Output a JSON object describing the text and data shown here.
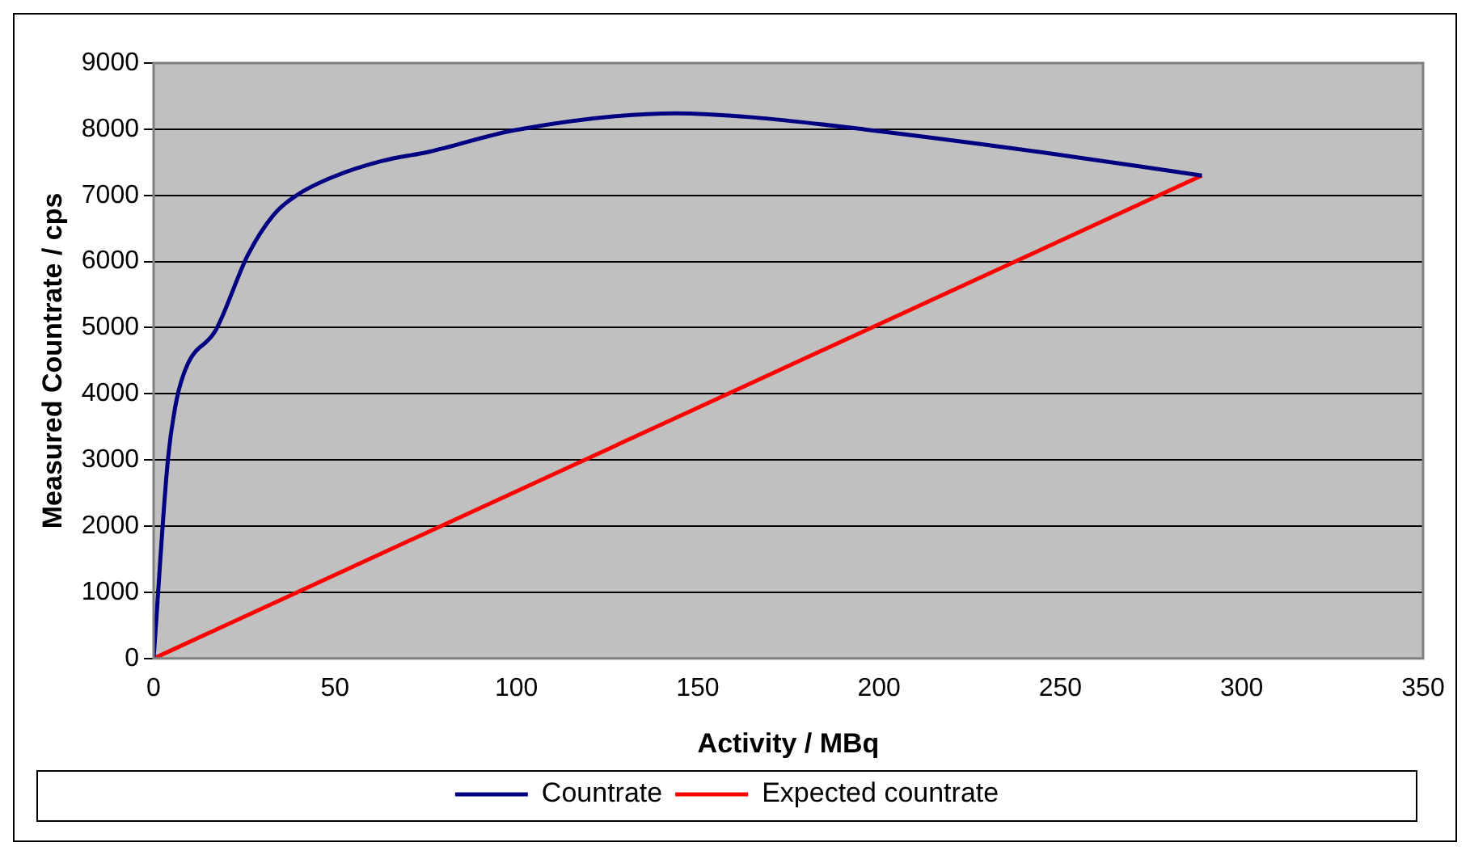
{
  "chart_data": {
    "type": "line",
    "xlabel": "Activity / MBq",
    "ylabel": "Measured Countrate / cps",
    "xlim": [
      0,
      350
    ],
    "xticks": [
      0,
      50,
      100,
      150,
      200,
      250,
      300,
      350
    ],
    "ylim": [
      0,
      9000
    ],
    "yticks": [
      0,
      1000,
      2000,
      3000,
      4000,
      5000,
      6000,
      7000,
      8000,
      9000
    ],
    "grid": "y",
    "legend": "bottom",
    "marker": "none",
    "line_style": "solid",
    "series": [
      {
        "name": "Countrate",
        "color": "#000080",
        "x": [
          0,
          3.9,
          6.3,
          9.4,
          17,
          26,
          33,
          40,
          50,
          63,
          76,
          100,
          144,
          165,
          197,
          245,
          289
        ],
        "values": [
          0,
          2980,
          3900,
          4450,
          4950,
          6100,
          6700,
          7020,
          7290,
          7520,
          7660,
          7990,
          8240,
          8180,
          7990,
          7650,
          7300
        ]
      },
      {
        "name": "Expected countrate",
        "color": "#ff0000",
        "x": [
          0,
          289
        ],
        "values": [
          0,
          7300
        ]
      }
    ]
  }
}
